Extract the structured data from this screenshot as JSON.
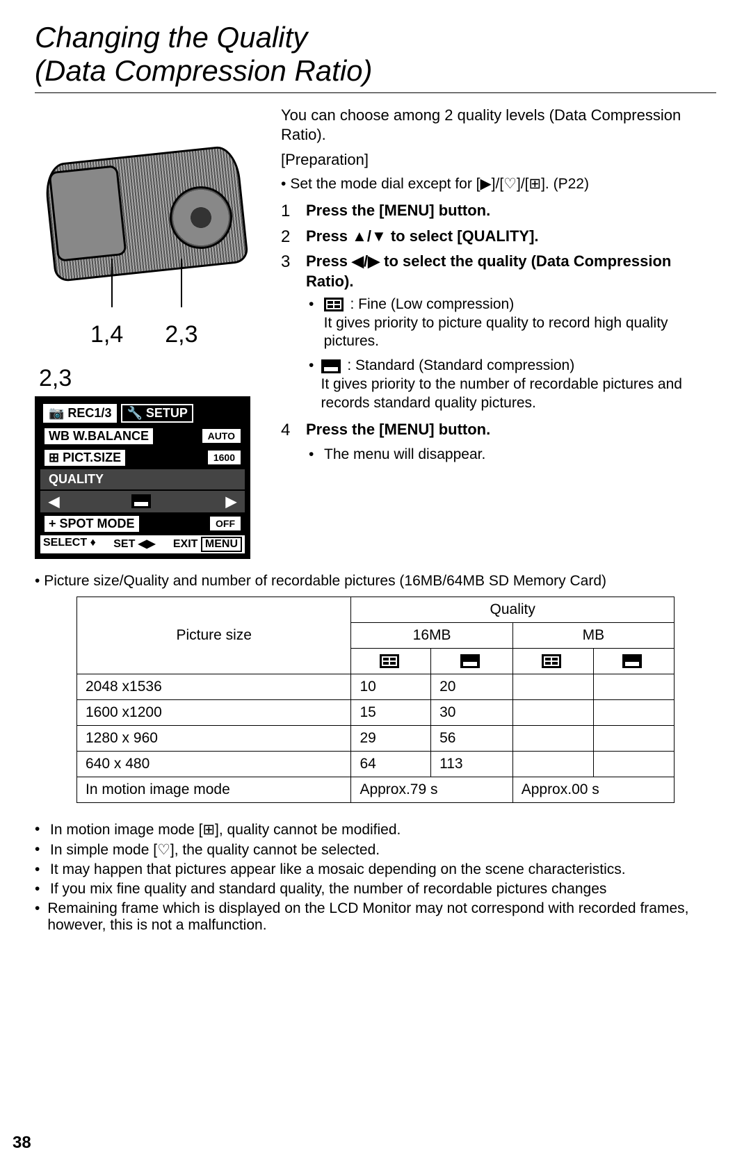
{
  "title_line1": "Changing the Quality",
  "title_line2": "(Data Compression Ratio)",
  "intro": "You can choose among 2 quality levels (Data Compression Ratio).",
  "prep_label": "[Preparation]",
  "prep_bullet": "Set the mode dial except for [▶]/[♡]/[⊞]. (P22)",
  "callouts": {
    "left": "1,4",
    "right": "2,3",
    "menu": "2,3"
  },
  "menu": {
    "tab1": "REC1/3",
    "tab2": "SETUP",
    "items": [
      {
        "label": "W.BALANCE",
        "prefix": "WB",
        "value": "AUTO"
      },
      {
        "label": "PICT.SIZE",
        "prefix": "⊞",
        "value": "1600"
      },
      {
        "label": "QUALITY",
        "prefix": "",
        "value": "",
        "hl": true
      },
      {
        "label": "",
        "prefix": "",
        "value": "",
        "hl": true,
        "arrows": true
      },
      {
        "label": "SPOT MODE",
        "prefix": "+",
        "value": "OFF"
      }
    ],
    "footer": {
      "a": "SELECT ♦",
      "b": "SET ◀▶",
      "c": "EXIT",
      "d": "MENU"
    }
  },
  "steps": [
    {
      "n": "1",
      "t": "Press the [MENU] button."
    },
    {
      "n": "2",
      "t": "Press ▲/▼ to select [QUALITY]."
    },
    {
      "n": "3",
      "t": "Press ◀/▶ to select the quality (Data Compression Ratio)."
    },
    {
      "n": "4",
      "t": "Press the [MENU] button."
    }
  ],
  "quality_options": [
    {
      "icon": "fine",
      "label": ": Fine (Low compression)",
      "desc": "It gives priority to picture quality to record high quality pictures."
    },
    {
      "icon": "std",
      "label": ": Standard (Standard compression)",
      "desc": "It gives priority to the number of recordable pictures and records standard quality pictures."
    }
  ],
  "step4_sub": "The menu will disappear.",
  "table_note": "Picture size/Quality and number of recordable pictures (16MB/64MB SD Memory Card)",
  "table": {
    "picture_size_label": "Picture size",
    "quality_label": "Quality",
    "cols": [
      "16MB",
      "MB"
    ],
    "iconcols": [
      "fine",
      "std",
      "fine",
      "std"
    ],
    "rows": [
      {
        "size": "2048 x1536",
        "v": [
          "10",
          "20",
          "",
          ""
        ]
      },
      {
        "size": "1600 x1200",
        "v": [
          "15",
          "30",
          "",
          ""
        ]
      },
      {
        "size": "1280 x 960",
        "v": [
          "29",
          "56",
          "",
          ""
        ]
      },
      {
        "size": "640 x 480",
        "v": [
          "64",
          "113",
          "",
          ""
        ]
      }
    ],
    "motion_label": "In motion image mode",
    "motion_vals": [
      "Approx.79 s",
      "Approx.00 s"
    ]
  },
  "notes": [
    "In motion image mode [⊞], quality cannot be modified.",
    "In simple mode [♡], the quality cannot be selected.",
    "It may happen that pictures appear like a mosaic depending on the scene characteristics.",
    "If you mix fine quality and standard quality, the number of recordable pictures changes",
    "Remaining frame which is displayed on the LCD Monitor may not correspond with recorded frames, however, this is not a malfunction."
  ],
  "page": "38"
}
